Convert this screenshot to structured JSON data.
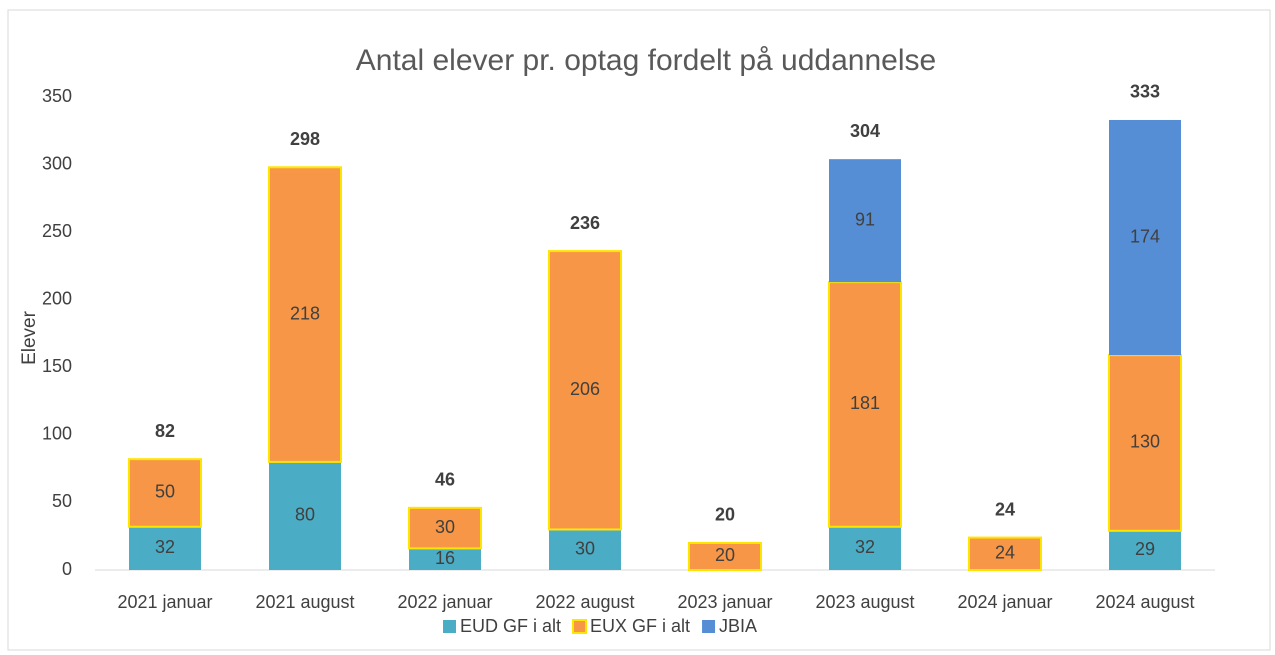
{
  "chart_data": {
    "type": "stacked_bar",
    "title": "Antal elever pr. optag fordelt på uddannelse",
    "ylabel": "Elever",
    "categories": [
      "2021 januar",
      "2021 august",
      "2022 januar",
      "2022 august",
      "2023 januar",
      "2023 august",
      "2024 januar",
      "2024 august"
    ],
    "series": [
      {
        "name": "EUD GF i alt",
        "color": "#4bacc6",
        "values": [
          32,
          80,
          16,
          30,
          null,
          32,
          null,
          29
        ]
      },
      {
        "name": "EUX GF i alt",
        "color": "#f79646",
        "edgecolor": "#ffe600",
        "values": [
          50,
          218,
          30,
          206,
          20,
          181,
          24,
          130
        ]
      },
      {
        "name": "JBIA",
        "color": "#558ed5",
        "values": [
          null,
          null,
          null,
          null,
          null,
          91,
          null,
          174
        ]
      }
    ],
    "totals": [
      82,
      298,
      46,
      236,
      20,
      304,
      24,
      333
    ],
    "ylim": [
      0,
      350
    ],
    "yticks": [
      0,
      50,
      100,
      150,
      200,
      250,
      300,
      350
    ],
    "grid": false,
    "legend": "bottom"
  }
}
